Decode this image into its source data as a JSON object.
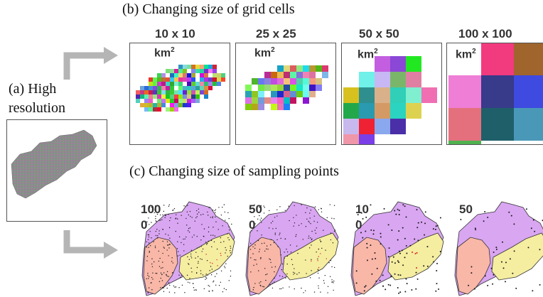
{
  "panel_a": {
    "label_line1": "(a) High",
    "label_line2": "resolution"
  },
  "panel_b": {
    "title": "(b) Changing size of grid cells",
    "grids": [
      {
        "size": "10 x 10",
        "unit": "km"
      },
      {
        "size": "25 x 25",
        "unit": "km"
      },
      {
        "size": "50 x 50",
        "unit": "km"
      },
      {
        "size": "100 x 100",
        "unit": "km"
      }
    ],
    "unit_superscript": "2"
  },
  "panel_c": {
    "title": "(c) Changing size of sampling points",
    "samples": [
      {
        "line1": "100",
        "line2": "0"
      },
      {
        "line1": "50",
        "line2": "0"
      },
      {
        "line1": "10",
        "line2": "0"
      },
      {
        "line1": "50",
        "line2": ""
      }
    ]
  },
  "colors": {
    "arrow": "#b5b5b5",
    "region_purple": "#d9a6f2",
    "region_pink": "#f9b7a8",
    "region_yellow": "#f5eda0",
    "points": "#1a1a1a",
    "points_red": "#d42020"
  }
}
